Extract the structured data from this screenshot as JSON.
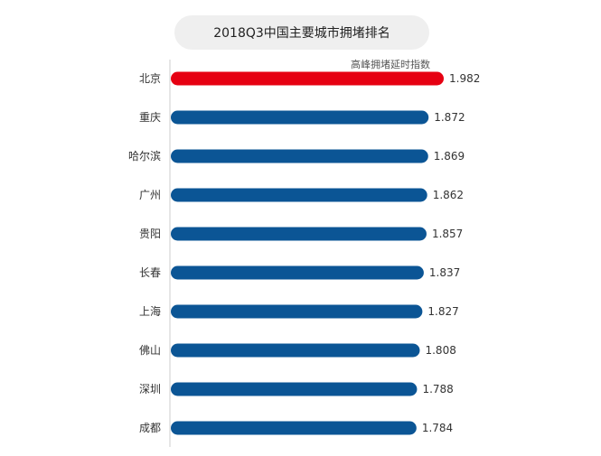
{
  "chart_data": {
    "type": "bar",
    "orientation": "horizontal",
    "title": "2018Q3中国主要城市拥堵排名",
    "legend_text": "高峰拥堵延时指数",
    "categories": [
      "北京",
      "重庆",
      "哈尔滨",
      "广州",
      "贵阳",
      "长春",
      "上海",
      "佛山",
      "深圳",
      "成都"
    ],
    "values": [
      1.982,
      1.872,
      1.869,
      1.862,
      1.857,
      1.837,
      1.827,
      1.808,
      1.788,
      1.784
    ],
    "value_labels": [
      "1.982",
      "1.872",
      "1.869",
      "1.862",
      "1.857",
      "1.837",
      "1.827",
      "1.808",
      "1.788",
      "1.784"
    ],
    "highlight_color": "#e60012",
    "bar_color": "#0b5595",
    "highlight_index": 0
  }
}
